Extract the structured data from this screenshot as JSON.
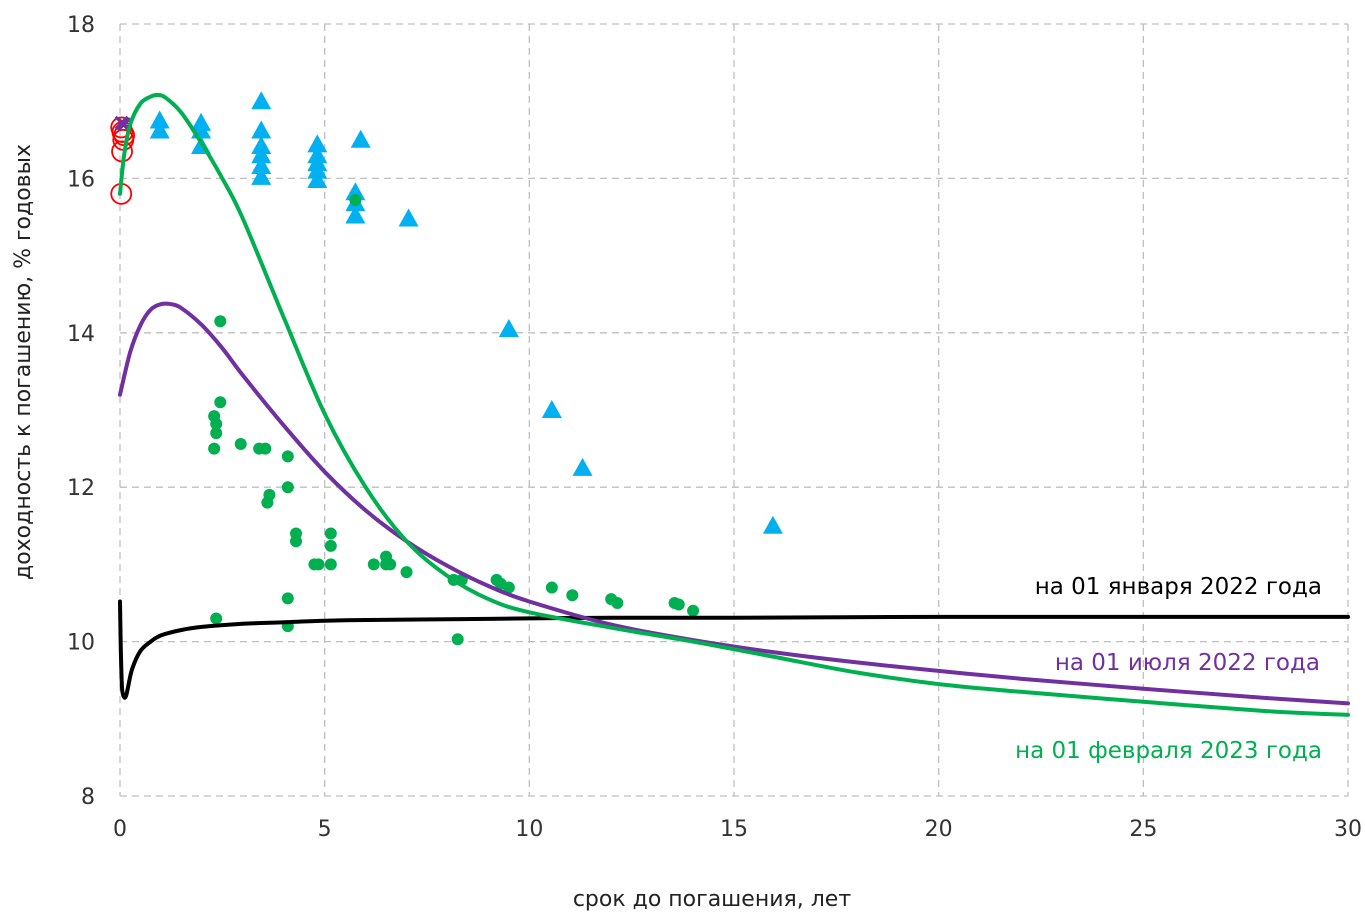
{
  "chart_data": {
    "type": "scatter",
    "xlabel": "срок до погашения, лет",
    "ylabel": "доходность к погашению, % годовых",
    "xlim": [
      0,
      30
    ],
    "ylim": [
      8,
      18
    ],
    "xticks": [
      "0",
      "5",
      "10",
      "15",
      "20",
      "25",
      "30"
    ],
    "yticks": [
      "8",
      "10",
      "12",
      "14",
      "16",
      "18"
    ],
    "grid": true,
    "curves": [
      {
        "name": "на 01 января 2022 года",
        "color": "#000000",
        "x": [
          0,
          0.02,
          0.05,
          0.1,
          0.15,
          0.2,
          0.3,
          0.5,
          0.75,
          1,
          1.5,
          2,
          3,
          4,
          5,
          6,
          8,
          10,
          12,
          15,
          20,
          25,
          30
        ],
        "y": [
          10.52,
          9.9,
          9.4,
          9.28,
          9.3,
          9.42,
          9.65,
          9.88,
          10.0,
          10.08,
          10.15,
          10.19,
          10.23,
          10.25,
          10.27,
          10.28,
          10.29,
          10.3,
          10.31,
          10.31,
          10.32,
          10.32,
          10.32
        ]
      },
      {
        "name": "на 01 июля 2022 года",
        "color": "#7030a0",
        "x": [
          0,
          0.25,
          0.5,
          0.75,
          1,
          1.25,
          1.5,
          2,
          2.5,
          3,
          4,
          5,
          6,
          7,
          8,
          9,
          10,
          12,
          14,
          16,
          18,
          20,
          22,
          25,
          28,
          30
        ],
        "y": [
          13.2,
          13.75,
          14.1,
          14.3,
          14.37,
          14.37,
          14.32,
          14.1,
          13.8,
          13.45,
          12.8,
          12.2,
          11.7,
          11.3,
          10.98,
          10.72,
          10.52,
          10.22,
          10.02,
          9.86,
          9.73,
          9.62,
          9.52,
          9.39,
          9.27,
          9.2
        ]
      },
      {
        "name": "на 01 февраля 2023 года",
        "color": "#00b050",
        "x": [
          0,
          0.1,
          0.25,
          0.5,
          0.75,
          0.9,
          1.1,
          1.5,
          2,
          2.5,
          3,
          4,
          5,
          6,
          7,
          8,
          9,
          10,
          12,
          14,
          16,
          18,
          20,
          22,
          25,
          28,
          30
        ],
        "y": [
          15.8,
          16.3,
          16.7,
          16.97,
          17.06,
          17.08,
          17.05,
          16.85,
          16.45,
          16.0,
          15.48,
          14.2,
          12.95,
          12.0,
          11.3,
          10.85,
          10.55,
          10.38,
          10.18,
          10.0,
          9.8,
          9.6,
          9.45,
          9.35,
          9.22,
          9.1,
          9.05
        ]
      }
    ],
    "scatter": [
      {
        "marker": "triangle",
        "color": "#00b0f0",
        "points": [
          [
            0.97,
            16.75
          ],
          [
            0.97,
            16.62
          ],
          [
            1.98,
            16.72
          ],
          [
            1.98,
            16.62
          ],
          [
            1.98,
            16.42
          ],
          [
            3.45,
            17.0
          ],
          [
            3.45,
            16.62
          ],
          [
            3.45,
            16.42
          ],
          [
            3.45,
            16.3
          ],
          [
            3.45,
            16.16
          ],
          [
            3.45,
            16.02
          ],
          [
            4.82,
            16.44
          ],
          [
            4.82,
            16.3
          ],
          [
            4.82,
            16.2
          ],
          [
            4.82,
            16.1
          ],
          [
            4.82,
            15.98
          ],
          [
            5.75,
            15.82
          ],
          [
            5.75,
            15.68
          ],
          [
            5.75,
            15.52
          ],
          [
            5.88,
            16.5
          ],
          [
            7.05,
            15.48
          ],
          [
            9.5,
            14.05
          ],
          [
            10.55,
            13.0
          ],
          [
            11.3,
            12.25
          ],
          [
            15.95,
            11.5
          ]
        ]
      },
      {
        "marker": "circle",
        "color": "#00b050",
        "points": [
          [
            2.45,
            14.15
          ],
          [
            2.45,
            13.1
          ],
          [
            2.3,
            12.92
          ],
          [
            2.35,
            12.82
          ],
          [
            2.35,
            12.7
          ],
          [
            2.3,
            12.5
          ],
          [
            2.95,
            12.56
          ],
          [
            3.4,
            12.5
          ],
          [
            3.55,
            12.5
          ],
          [
            4.1,
            12.4
          ],
          [
            4.1,
            12.0
          ],
          [
            3.65,
            11.9
          ],
          [
            3.6,
            11.8
          ],
          [
            4.3,
            11.4
          ],
          [
            4.3,
            11.3
          ],
          [
            5.15,
            11.4
          ],
          [
            5.15,
            11.24
          ],
          [
            4.75,
            11.0
          ],
          [
            4.85,
            11.0
          ],
          [
            5.15,
            11.0
          ],
          [
            6.2,
            11.0
          ],
          [
            6.5,
            11.1
          ],
          [
            6.5,
            11.0
          ],
          [
            6.6,
            11.0
          ],
          [
            7.0,
            10.9
          ],
          [
            8.15,
            10.8
          ],
          [
            8.35,
            10.8
          ],
          [
            9.2,
            10.8
          ],
          [
            9.3,
            10.75
          ],
          [
            9.5,
            10.7
          ],
          [
            10.55,
            10.7
          ],
          [
            11.05,
            10.6
          ],
          [
            12.0,
            10.55
          ],
          [
            12.15,
            10.5
          ],
          [
            13.55,
            10.5
          ],
          [
            13.65,
            10.48
          ],
          [
            14.0,
            10.4
          ],
          [
            2.35,
            10.3
          ],
          [
            4.1,
            10.56
          ],
          [
            4.1,
            10.2
          ],
          [
            8.25,
            10.03
          ],
          [
            5.75,
            15.72
          ]
        ]
      },
      {
        "marker": "open-circle",
        "color": "#ff0000",
        "points": [
          [
            0.03,
            16.66
          ],
          [
            0.06,
            16.6
          ],
          [
            0.1,
            16.56
          ],
          [
            0.08,
            16.5
          ],
          [
            0.05,
            16.35
          ],
          [
            0.03,
            15.8
          ]
        ]
      },
      {
        "marker": "x",
        "color": "#7030a0",
        "points": [
          [
            0.04,
            16.72
          ],
          [
            0.1,
            16.7
          ]
        ]
      }
    ]
  }
}
